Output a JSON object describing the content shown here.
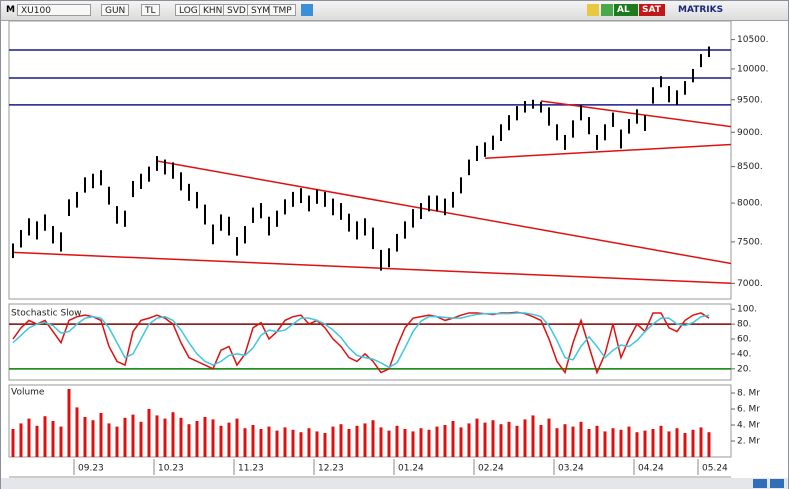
{
  "toolbar": {
    "symbol_menu": "M",
    "symbol": "XU100",
    "buttons": [
      "GUN",
      "TL",
      "LOG",
      "KHN",
      "SVD",
      "SYM",
      "TMP"
    ],
    "trade_buttons": [
      "AL",
      "SAT"
    ],
    "brand": "MATRIKS"
  },
  "chart_data": [
    {
      "type": "ohlc",
      "log_scale": true,
      "color": "#000000",
      "ylim": [
        6820,
        10830
      ],
      "yticks": [
        {
          "value": 7000,
          "label": "7000."
        },
        {
          "value": 7500,
          "label": "7500."
        },
        {
          "value": 8000,
          "label": "8000."
        },
        {
          "value": 8500,
          "label": "8500."
        },
        {
          "value": 9000,
          "label": "9000."
        },
        {
          "value": 9500,
          "label": "9500."
        },
        {
          "value": 10000,
          "label": "10000."
        },
        {
          "value": 10500,
          "label": "10500."
        }
      ],
      "high": [
        7480,
        7650,
        7800,
        7760,
        7850,
        7700,
        7620,
        8050,
        8150,
        8350,
        8400,
        8450,
        8220,
        7960,
        7900,
        8300,
        8400,
        8500,
        8650,
        8600,
        8560,
        8420,
        8260,
        8150,
        7980,
        7720,
        7850,
        7820,
        7560,
        7700,
        7940,
        8000,
        7820,
        7900,
        8050,
        8150,
        8200,
        8100,
        8180,
        8150,
        8060,
        8000,
        7860,
        7760,
        7800,
        7680,
        7400,
        7420,
        7600,
        7760,
        7920,
        8000,
        8100,
        8100,
        8060,
        8150,
        8350,
        8600,
        8800,
        8850,
        8950,
        9120,
        9260,
        9400,
        9480,
        9500,
        9470,
        9380,
        9120,
        8960,
        9180,
        9420,
        9230,
        8960,
        9120,
        9300,
        9040,
        9200,
        9350,
        9260,
        9700,
        9880,
        9720,
        9650,
        9800,
        10000,
        10250,
        10380
      ],
      "low": [
        7300,
        7430,
        7580,
        7530,
        7640,
        7480,
        7380,
        7830,
        7940,
        8140,
        8200,
        8240,
        7980,
        7730,
        7690,
        8080,
        8190,
        8290,
        8440,
        8390,
        8330,
        8170,
        8030,
        7930,
        7720,
        7470,
        7640,
        7580,
        7330,
        7480,
        7740,
        7800,
        7580,
        7690,
        7850,
        7950,
        8000,
        7890,
        7990,
        7950,
        7840,
        7780,
        7630,
        7530,
        7580,
        7410,
        7150,
        7190,
        7380,
        7540,
        7680,
        7790,
        7890,
        7890,
        7840,
        7940,
        8130,
        8380,
        8580,
        8640,
        8740,
        8870,
        9030,
        9180,
        9300,
        9360,
        9300,
        9100,
        8880,
        8740,
        8920,
        9180,
        8970,
        8740,
        8880,
        9080,
        8760,
        8980,
        9130,
        9020,
        9440,
        9700,
        9460,
        9420,
        9580,
        9780,
        10030,
        10200
      ],
      "levels": [
        10320,
        9850,
        9420
      ],
      "level_color": "#1a1a8c",
      "trendlines": [
        {
          "points": [
            [
              0,
              7370
            ],
            [
              90,
              7000
            ]
          ]
        },
        {
          "points": [
            [
              18,
              8580
            ],
            [
              90,
              7230
            ]
          ]
        },
        {
          "points": [
            [
              59,
              8620
            ],
            [
              90,
              8820
            ]
          ]
        },
        {
          "points": [
            [
              66,
              9480
            ],
            [
              90,
              9080
            ]
          ]
        }
      ],
      "trendline_color": "#e01010"
    },
    {
      "type": "line",
      "title": "Stochastic Slow",
      "ylim": [
        5,
        107
      ],
      "yticks": [
        {
          "value": 20,
          "label": "20."
        },
        {
          "value": 40,
          "label": "40."
        },
        {
          "value": 60,
          "label": "60."
        },
        {
          "value": 80,
          "label": "80."
        },
        {
          "value": 100,
          "label": "100."
        }
      ],
      "series": [
        {
          "color": "#e01010",
          "values": [
            60,
            75,
            85,
            80,
            85,
            70,
            55,
            85,
            90,
            92,
            90,
            85,
            50,
            30,
            25,
            70,
            85,
            88,
            92,
            88,
            80,
            55,
            35,
            30,
            25,
            20,
            45,
            50,
            25,
            40,
            75,
            82,
            60,
            70,
            85,
            90,
            92,
            80,
            85,
            75,
            60,
            50,
            35,
            30,
            40,
            30,
            15,
            20,
            50,
            75,
            88,
            90,
            92,
            90,
            85,
            88,
            92,
            95,
            95,
            94,
            93,
            95,
            95,
            96,
            94,
            90,
            85,
            60,
            30,
            15,
            55,
            85,
            50,
            15,
            40,
            80,
            35,
            60,
            80,
            70,
            95,
            95,
            75,
            70,
            85,
            92,
            95,
            88
          ]
        },
        {
          "color": "#3cc8e0",
          "values": [
            55,
            65,
            75,
            80,
            82,
            78,
            68,
            70,
            80,
            88,
            90,
            88,
            75,
            55,
            35,
            40,
            60,
            80,
            88,
            90,
            85,
            72,
            55,
            40,
            30,
            25,
            30,
            38,
            40,
            38,
            48,
            65,
            72,
            70,
            72,
            80,
            88,
            88,
            85,
            80,
            72,
            62,
            48,
            38,
            35,
            33,
            28,
            22,
            28,
            48,
            70,
            84,
            90,
            90,
            89,
            88,
            88,
            91,
            93,
            94,
            94,
            94,
            94,
            95,
            95,
            93,
            90,
            78,
            58,
            35,
            32,
            50,
            63,
            50,
            35,
            45,
            52,
            50,
            58,
            70,
            80,
            88,
            88,
            80,
            78,
            82,
            90,
            92
          ]
        }
      ],
      "levels": [
        {
          "value": 80,
          "color": "#800000"
        },
        {
          "value": 20,
          "color": "#008000"
        }
      ]
    },
    {
      "type": "bar",
      "title": "Volume",
      "color": "#e01010",
      "ylim": [
        0,
        9
      ],
      "yticks": [
        {
          "value": 2,
          "label": "2. Mr"
        },
        {
          "value": 4,
          "label": "4. Mr"
        },
        {
          "value": 6,
          "label": "6. Mr"
        },
        {
          "value": 8,
          "label": "8. Mr"
        }
      ],
      "categories": [
        null,
        null,
        null,
        null,
        null,
        null,
        null,
        null,
        "09.23",
        null,
        null,
        null,
        null,
        null,
        null,
        null,
        null,
        null,
        "10.23",
        null,
        null,
        null,
        null,
        null,
        null,
        null,
        null,
        null,
        "11.23",
        null,
        null,
        null,
        null,
        null,
        null,
        null,
        null,
        null,
        "12.23",
        null,
        null,
        null,
        null,
        null,
        null,
        null,
        null,
        null,
        "01.24",
        null,
        null,
        null,
        null,
        null,
        null,
        null,
        null,
        null,
        "02.24",
        null,
        null,
        null,
        null,
        null,
        null,
        null,
        null,
        null,
        "03.24",
        null,
        null,
        null,
        null,
        null,
        null,
        null,
        null,
        null,
        "04.24",
        null,
        null,
        null,
        null,
        null,
        null,
        null,
        "05.24",
        null
      ],
      "values": [
        3.5,
        4.2,
        4.8,
        3.9,
        5.1,
        4.5,
        3.8,
        8.5,
        6.2,
        5.0,
        4.6,
        5.5,
        4.2,
        3.8,
        4.9,
        5.3,
        4.4,
        6.0,
        5.2,
        4.8,
        5.6,
        4.9,
        4.1,
        4.5,
        5.0,
        4.7,
        3.9,
        4.3,
        4.8,
        3.6,
        4.0,
        3.5,
        3.8,
        3.3,
        3.7,
        3.4,
        3.1,
        3.6,
        3.2,
        3.0,
        3.8,
        4.1,
        3.5,
        3.9,
        4.2,
        4.6,
        3.7,
        3.3,
        3.9,
        3.5,
        3.2,
        3.6,
        3.4,
        3.8,
        4.0,
        4.5,
        3.7,
        4.2,
        4.8,
        4.3,
        4.6,
        4.1,
        4.4,
        3.9,
        4.7,
        5.2,
        4.0,
        4.8,
        3.6,
        4.1,
        3.8,
        4.4,
        3.5,
        3.9,
        3.2,
        3.6,
        3.4,
        3.8,
        3.1,
        3.3,
        3.5,
        3.9,
        3.2,
        3.6,
        3.0,
        3.4,
        3.7,
        3.1
      ]
    }
  ]
}
